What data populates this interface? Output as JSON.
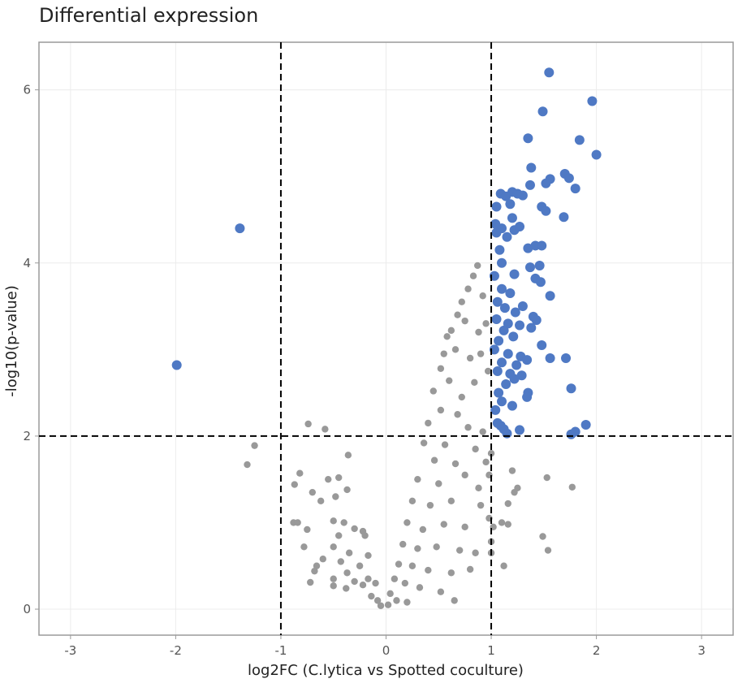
{
  "chart_data": {
    "type": "scatter",
    "title": "Differential expression",
    "xlabel": "log2FC (C.lytica vs Spotted coculture)",
    "ylabel": "-log10(p-value)",
    "xlim": [
      -3.3,
      3.3
    ],
    "ylim": [
      -0.3,
      6.55
    ],
    "xticks": [
      -3,
      -2,
      -1,
      0,
      1,
      2,
      3
    ],
    "yticks": [
      0,
      2,
      4,
      6
    ],
    "grid": true,
    "legend": "none",
    "thresholds": {
      "x": [
        -1,
        1
      ],
      "y": [
        2
      ]
    },
    "colors": {
      "significant": "#4f79c4",
      "not_significant": "#999999"
    },
    "series": [
      {
        "status": "significant",
        "points": [
          [
            1.55,
            6.2
          ],
          [
            1.96,
            5.87
          ],
          [
            1.49,
            5.75
          ],
          [
            1.35,
            5.44
          ],
          [
            1.84,
            5.42
          ],
          [
            2.0,
            5.25
          ],
          [
            1.38,
            5.1
          ],
          [
            1.7,
            5.03
          ],
          [
            1.74,
            4.98
          ],
          [
            1.56,
            4.97
          ],
          [
            1.37,
            4.9
          ],
          [
            1.52,
            4.92
          ],
          [
            1.8,
            4.86
          ],
          [
            1.09,
            4.8
          ],
          [
            1.2,
            4.82
          ],
          [
            1.25,
            4.8
          ],
          [
            1.14,
            4.77
          ],
          [
            1.3,
            4.78
          ],
          [
            1.05,
            4.65
          ],
          [
            1.48,
            4.65
          ],
          [
            1.18,
            4.68
          ],
          [
            1.52,
            4.6
          ],
          [
            1.69,
            4.53
          ],
          [
            1.2,
            4.52
          ],
          [
            1.04,
            4.45
          ],
          [
            1.1,
            4.4
          ],
          [
            1.22,
            4.38
          ],
          [
            1.27,
            4.42
          ],
          [
            1.15,
            4.3
          ],
          [
            1.05,
            4.35
          ],
          [
            1.08,
            4.15
          ],
          [
            1.42,
            4.2
          ],
          [
            1.48,
            4.2
          ],
          [
            1.35,
            4.17
          ],
          [
            1.1,
            4.0
          ],
          [
            1.46,
            3.97
          ],
          [
            1.22,
            3.87
          ],
          [
            1.37,
            3.95
          ],
          [
            1.03,
            3.85
          ],
          [
            1.42,
            3.82
          ],
          [
            1.47,
            3.78
          ],
          [
            1.1,
            3.7
          ],
          [
            1.56,
            3.62
          ],
          [
            1.18,
            3.65
          ],
          [
            1.06,
            3.55
          ],
          [
            1.3,
            3.5
          ],
          [
            1.13,
            3.48
          ],
          [
            1.23,
            3.43
          ],
          [
            1.4,
            3.38
          ],
          [
            1.05,
            3.35
          ],
          [
            1.16,
            3.3
          ],
          [
            1.27,
            3.28
          ],
          [
            1.43,
            3.34
          ],
          [
            1.12,
            3.22
          ],
          [
            1.38,
            3.25
          ],
          [
            1.07,
            3.1
          ],
          [
            1.21,
            3.15
          ],
          [
            1.48,
            3.05
          ],
          [
            1.03,
            3.0
          ],
          [
            1.16,
            2.95
          ],
          [
            1.28,
            2.92
          ],
          [
            1.56,
            2.9
          ],
          [
            1.71,
            2.9
          ],
          [
            1.1,
            2.85
          ],
          [
            1.24,
            2.82
          ],
          [
            1.34,
            2.88
          ],
          [
            1.06,
            2.75
          ],
          [
            1.18,
            2.72
          ],
          [
            1.29,
            2.7
          ],
          [
            1.22,
            2.66
          ],
          [
            1.14,
            2.6
          ],
          [
            1.76,
            2.55
          ],
          [
            1.07,
            2.5
          ],
          [
            1.35,
            2.5
          ],
          [
            1.1,
            2.4
          ],
          [
            1.34,
            2.45
          ],
          [
            1.2,
            2.35
          ],
          [
            1.04,
            2.3
          ],
          [
            1.06,
            2.15
          ],
          [
            1.09,
            2.12
          ],
          [
            1.12,
            2.08
          ],
          [
            1.27,
            2.07
          ],
          [
            1.15,
            2.03
          ],
          [
            1.76,
            2.02
          ],
          [
            1.8,
            2.05
          ],
          [
            1.9,
            2.13
          ],
          [
            -1.39,
            4.4
          ],
          [
            -1.99,
            2.82
          ]
        ]
      },
      {
        "status": "not_significant",
        "points": [
          [
            -0.74,
            2.14
          ],
          [
            -0.58,
            2.08
          ],
          [
            -1.25,
            1.89
          ],
          [
            -1.32,
            1.67
          ],
          [
            -0.36,
            1.78
          ],
          [
            -0.55,
            1.5
          ],
          [
            -0.45,
            1.52
          ],
          [
            -0.82,
            1.57
          ],
          [
            -0.87,
            1.44
          ],
          [
            -0.7,
            1.35
          ],
          [
            -0.48,
            1.3
          ],
          [
            -0.37,
            1.38
          ],
          [
            -0.62,
            1.25
          ],
          [
            -0.88,
            1.0
          ],
          [
            -0.84,
            1.0
          ],
          [
            -0.5,
            1.02
          ],
          [
            -0.4,
            1.0
          ],
          [
            -0.3,
            0.93
          ],
          [
            -0.75,
            0.92
          ],
          [
            -0.45,
            0.85
          ],
          [
            -0.22,
            0.9
          ],
          [
            -0.2,
            0.85
          ],
          [
            -0.78,
            0.72
          ],
          [
            -0.5,
            0.72
          ],
          [
            -0.35,
            0.65
          ],
          [
            -0.17,
            0.62
          ],
          [
            -0.6,
            0.58
          ],
          [
            -0.66,
            0.5
          ],
          [
            -0.43,
            0.55
          ],
          [
            -0.25,
            0.5
          ],
          [
            -0.37,
            0.42
          ],
          [
            -0.5,
            0.35
          ],
          [
            -0.68,
            0.44
          ],
          [
            -0.17,
            0.35
          ],
          [
            -0.22,
            0.28
          ],
          [
            -0.38,
            0.24
          ],
          [
            -0.3,
            0.32
          ],
          [
            -0.1,
            0.3
          ],
          [
            -0.72,
            0.31
          ],
          [
            -0.5,
            0.27
          ],
          [
            -0.14,
            0.15
          ],
          [
            -0.08,
            0.1
          ],
          [
            -0.05,
            0.04
          ],
          [
            0.87,
            3.97
          ],
          [
            0.83,
            3.85
          ],
          [
            0.78,
            3.7
          ],
          [
            0.92,
            3.62
          ],
          [
            0.72,
            3.55
          ],
          [
            0.68,
            3.4
          ],
          [
            0.75,
            3.33
          ],
          [
            0.62,
            3.22
          ],
          [
            0.58,
            3.15
          ],
          [
            0.88,
            3.2
          ],
          [
            0.95,
            3.3
          ],
          [
            0.66,
            3.0
          ],
          [
            0.55,
            2.95
          ],
          [
            0.8,
            2.9
          ],
          [
            0.9,
            2.95
          ],
          [
            0.52,
            2.78
          ],
          [
            0.45,
            2.52
          ],
          [
            0.6,
            2.64
          ],
          [
            0.72,
            2.45
          ],
          [
            0.84,
            2.62
          ],
          [
            0.97,
            2.75
          ],
          [
            0.52,
            2.3
          ],
          [
            0.68,
            2.25
          ],
          [
            0.4,
            2.15
          ],
          [
            0.78,
            2.1
          ],
          [
            0.92,
            2.05
          ],
          [
            0.36,
            1.92
          ],
          [
            0.56,
            1.9
          ],
          [
            0.85,
            1.85
          ],
          [
            0.46,
            1.72
          ],
          [
            0.66,
            1.68
          ],
          [
            0.95,
            1.7
          ],
          [
            0.3,
            1.5
          ],
          [
            0.5,
            1.45
          ],
          [
            0.75,
            1.55
          ],
          [
            0.88,
            1.4
          ],
          [
            0.25,
            1.25
          ],
          [
            0.42,
            1.2
          ],
          [
            0.62,
            1.25
          ],
          [
            0.9,
            1.2
          ],
          [
            0.98,
            1.05
          ],
          [
            0.2,
            1.0
          ],
          [
            0.35,
            0.92
          ],
          [
            0.55,
            0.98
          ],
          [
            0.75,
            0.95
          ],
          [
            0.16,
            0.75
          ],
          [
            0.3,
            0.7
          ],
          [
            0.48,
            0.72
          ],
          [
            0.7,
            0.68
          ],
          [
            0.85,
            0.65
          ],
          [
            0.12,
            0.52
          ],
          [
            0.25,
            0.5
          ],
          [
            0.4,
            0.45
          ],
          [
            0.62,
            0.42
          ],
          [
            0.8,
            0.46
          ],
          [
            0.08,
            0.35
          ],
          [
            0.18,
            0.3
          ],
          [
            0.32,
            0.25
          ],
          [
            0.52,
            0.2
          ],
          [
            0.65,
            0.1
          ],
          [
            0.04,
            0.18
          ],
          [
            0.1,
            0.1
          ],
          [
            0.2,
            0.08
          ],
          [
            0.02,
            0.05
          ],
          [
            1.25,
            1.4
          ],
          [
            1.22,
            1.35
          ],
          [
            1.16,
            1.22
          ],
          [
            1.53,
            1.52
          ],
          [
            1.77,
            1.41
          ],
          [
            1.1,
            1.0
          ],
          [
            1.16,
            0.98
          ],
          [
            1.49,
            0.84
          ],
          [
            1.54,
            0.68
          ],
          [
            1.12,
            0.5
          ],
          [
            1.02,
            0.95
          ],
          [
            1.0,
            0.78
          ],
          [
            1.0,
            0.65
          ],
          [
            0.98,
            1.55
          ],
          [
            1.0,
            1.8
          ],
          [
            1.2,
            1.6
          ]
        ]
      }
    ]
  }
}
